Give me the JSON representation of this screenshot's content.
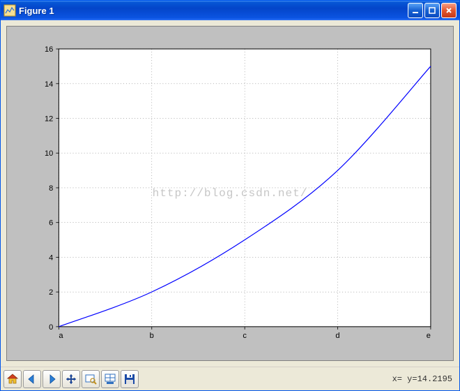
{
  "window": {
    "title": "Figure 1",
    "titlebar_gradient": [
      "#3f8cf3",
      "#0656d6",
      "#0445c9",
      "#0b54e2",
      "#2a6ff5"
    ],
    "title_color": "#ffffff",
    "border_color": "#0055ea",
    "bg_color": "#ece9d8",
    "controls": {
      "min_bg": "#1560d2",
      "max_bg": "#1560d2",
      "close_bg": "#e3562e"
    }
  },
  "plot": {
    "type": "line",
    "frame_bg": "#c0c0c0",
    "axes_bg": "#ffffff",
    "x_categories": [
      "a",
      "b",
      "c",
      "d",
      "e"
    ],
    "y_values": [
      0,
      2,
      5,
      9,
      15
    ],
    "x_index": [
      0,
      1,
      2,
      3,
      4
    ],
    "line_color": "#0000ff",
    "line_width": 1.2,
    "xlim": [
      0,
      4
    ],
    "ylim": [
      0,
      16
    ],
    "yticks": [
      0,
      2,
      4,
      6,
      8,
      10,
      12,
      14,
      16
    ],
    "xticks": [
      0,
      1,
      2,
      3,
      4
    ],
    "tick_labels_x": [
      "a",
      "b",
      "c",
      "d",
      "e"
    ],
    "tick_fontsize": 11,
    "tick_color": "#000000",
    "grid": true,
    "grid_color": "#808080",
    "grid_dash": "1,3",
    "axes_border_color": "#000000",
    "watermark": "http://blog.csdn.net/",
    "watermark_color": "rgba(128,128,128,0.45)"
  },
  "toolbar": {
    "items": [
      {
        "name": "home-icon"
      },
      {
        "name": "back-icon"
      },
      {
        "name": "forward-icon"
      },
      {
        "name": "pan-icon"
      },
      {
        "name": "zoom-icon"
      },
      {
        "name": "subplots-icon"
      },
      {
        "name": "save-icon"
      }
    ]
  },
  "status": {
    "text": "x= y=14.2195"
  }
}
